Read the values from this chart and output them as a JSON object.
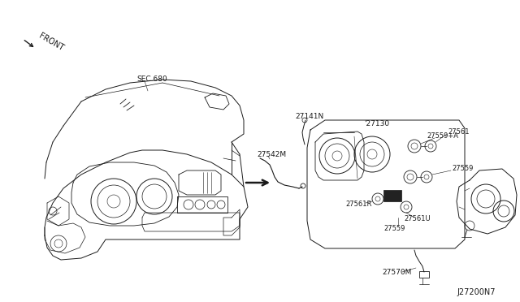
{
  "bg_color": "#ffffff",
  "line_color": "#1a1a1a",
  "fig_width": 6.4,
  "fig_height": 3.72,
  "dpi": 100,
  "diagram_id": "J27200N7",
  "front_label": "FRONT",
  "sec680": "SEC.680",
  "lbl_27141N": "27141N",
  "lbl_27542M": "27542M",
  "lbl_27130": "'27130",
  "lbl_27561": "27561",
  "lbl_27559A": "27559+A",
  "lbl_27559_1": "27559",
  "lbl_27561R": "27561R",
  "lbl_27561U": "27561U",
  "lbl_27559_2": "27559",
  "lbl_27570M": "27570M"
}
